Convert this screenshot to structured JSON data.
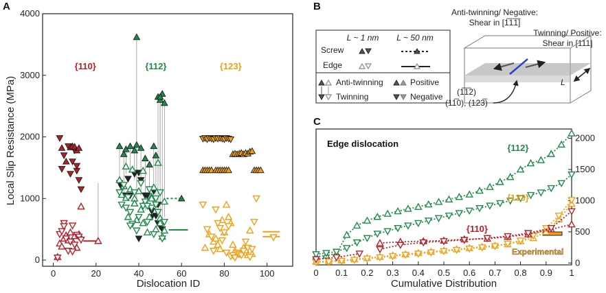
{
  "colors": {
    "red": "#b5202a",
    "green": "#1f8a4a",
    "orange": "#f0a017",
    "dark": "#1f2a25",
    "gray": "#888888"
  },
  "panel_labels": {
    "a": "A",
    "b": "B",
    "c": "C"
  },
  "chart_data": [
    {
      "panel": "A",
      "type": "scatter",
      "xlabel": "Dislocation ID",
      "ylabel": "Local Slip Resistance (MPa)",
      "xlim": [
        -5,
        112
      ],
      "ylim": [
        -100,
        4000
      ],
      "xticks": [
        "0",
        "20",
        "40",
        "60",
        "80",
        "100"
      ],
      "yticks": [
        "0",
        "1000",
        "2000",
        "3000",
        "4000"
      ],
      "group_labels": [
        {
          "text": "{110}",
          "x": 15,
          "y": 3100,
          "color": "red"
        },
        {
          "text": "{112}",
          "x": 48,
          "y": 3100,
          "color": "green"
        },
        {
          "text": "{123}",
          "x": 83,
          "y": 3100,
          "color": "orange"
        }
      ],
      "series": [
        {
          "name": "{110} anti-twinning",
          "color": "red",
          "marker": "down",
          "filled": true,
          "x": [
            3,
            5,
            7,
            9,
            10,
            11,
            12,
            13,
            4,
            8,
            11
          ],
          "y": [
            1980,
            1700,
            1850,
            1600,
            1780,
            1450,
            1300,
            1150,
            1480,
            1400,
            1530
          ]
        },
        {
          "name": "{110} twinning",
          "color": "red",
          "marker": "up",
          "filled": true,
          "x": [
            4,
            6,
            8,
            9,
            10,
            11,
            12
          ],
          "y": [
            1820,
            1600,
            1830,
            1850,
            1840,
            1780,
            1820
          ]
        },
        {
          "name": "{110} open up",
          "color": "red",
          "marker": "up",
          "filled": false,
          "x": [
            2,
            3,
            4,
            5,
            6,
            7,
            8,
            9,
            10,
            11,
            12,
            13
          ],
          "y": [
            50,
            270,
            220,
            350,
            400,
            320,
            450,
            310,
            390,
            200,
            420,
            870
          ]
        },
        {
          "name": "{110} open down",
          "color": "red",
          "marker": "down",
          "filled": false,
          "x": [
            2,
            3,
            4,
            5,
            6,
            7,
            8,
            9,
            10,
            11,
            12,
            13,
            5,
            9
          ],
          "y": [
            40,
            420,
            470,
            600,
            350,
            150,
            300,
            560,
            250,
            410,
            380,
            330,
            550,
            140
          ]
        },
        {
          "name": "{110} L~50 edge",
          "color": "red",
          "type": "hline",
          "x": [
            14,
            20
          ],
          "y": [
            310,
            310
          ]
        },
        {
          "name": "{110} L~50 marker",
          "color": "red",
          "marker": "up",
          "filled": false,
          "x": [
            21
          ],
          "y": [
            310
          ]
        },
        {
          "name": "{112} filled up",
          "color": "green",
          "marker": "up",
          "filled": true,
          "x": [
            31,
            33,
            34,
            36,
            38,
            39,
            41,
            43,
            45,
            47,
            48,
            49,
            50,
            51,
            52,
            39,
            50
          ],
          "y": [
            1850,
            1720,
            1800,
            1850,
            1780,
            1870,
            1820,
            1650,
            1550,
            1850,
            1700,
            2650,
            2600,
            2700,
            2550,
            3620,
            2650
          ]
        },
        {
          "name": "{112} filled down",
          "color": "dark",
          "marker": "down",
          "filled": true,
          "x": [
            31,
            32,
            33,
            35,
            36,
            38,
            40,
            41,
            43,
            44,
            46,
            47,
            48,
            49,
            50,
            51,
            40,
            46,
            49
          ],
          "y": [
            1250,
            1180,
            1050,
            1320,
            1050,
            1400,
            1420,
            1300,
            1050,
            1050,
            800,
            1120,
            720,
            600,
            550,
            500,
            350,
            700,
            900
          ]
        },
        {
          "name": "{112} open up",
          "color": "green",
          "marker": "up",
          "filled": false,
          "x": [
            31,
            32,
            33,
            34,
            35,
            36,
            37,
            38,
            39,
            40,
            41,
            42,
            43,
            44,
            45,
            46,
            47,
            48,
            49,
            50,
            51,
            52,
            34,
            38,
            42,
            46,
            50,
            52
          ],
          "y": [
            1300,
            1060,
            1200,
            1520,
            700,
            1150,
            1470,
            1000,
            650,
            1120,
            820,
            1450,
            950,
            450,
            700,
            1030,
            1180,
            500,
            1580,
            680,
            380,
            950,
            1010,
            920,
            600,
            1000,
            600,
            480
          ]
        },
        {
          "name": "{112} open down",
          "color": "green",
          "marker": "down",
          "filled": false,
          "x": [
            31,
            32,
            33,
            34,
            35,
            36,
            37,
            38,
            39,
            40,
            41,
            42,
            43,
            44,
            45,
            46,
            47,
            48,
            49,
            50,
            51,
            52,
            36,
            44,
            48
          ],
          "y": [
            1100,
            900,
            1220,
            850,
            1020,
            780,
            590,
            1100,
            480,
            700,
            1250,
            880,
            950,
            620,
            1150,
            850,
            420,
            900,
            780,
            1100,
            350,
            620,
            560,
            880,
            1000
          ]
        },
        {
          "name": "{112} L~50 edge",
          "color": "green",
          "type": "hline",
          "x": [
            54,
            63
          ],
          "y": [
            490,
            490
          ]
        },
        {
          "name": "{112} L~50 screw",
          "color": "green",
          "type": "dotted",
          "x": [
            53,
            60
          ],
          "y": [
            1000,
            1000
          ]
        },
        {
          "name": "{112} L~50 marker",
          "color": "green",
          "marker": "up",
          "filled": true,
          "x": [
            60
          ],
          "y": [
            1000
          ]
        },
        {
          "name": "{123} filled down",
          "color": "orange",
          "marker": "down",
          "filled": true,
          "x": [
            70,
            71,
            72,
            73,
            74,
            75,
            76,
            77,
            78,
            79,
            80,
            81,
            82,
            83
          ],
          "y": [
            1970,
            1980,
            1960,
            1980,
            1970,
            1960,
            1980,
            1970,
            1980,
            1970,
            1960,
            1980,
            1970,
            1960
          ]
        },
        {
          "name": "{123} filled up",
          "color": "orange",
          "marker": "up",
          "filled": true,
          "x": [
            70,
            71,
            72,
            73,
            74,
            76,
            77,
            78,
            79,
            80,
            81,
            82,
            84,
            85,
            86,
            87,
            88,
            89,
            90,
            91,
            92,
            93,
            94,
            95,
            96,
            97
          ],
          "y": [
            1460,
            1460,
            1460,
            1460,
            1460,
            1460,
            1460,
            1460,
            1460,
            1460,
            1460,
            1460,
            1720,
            1730,
            1720,
            1730,
            1740,
            1720,
            1740,
            1730,
            1760,
            1770,
            1460,
            1460,
            1460,
            1460
          ]
        },
        {
          "name": "{123} open up",
          "color": "orange",
          "marker": "up",
          "filled": false,
          "x": [
            71,
            73,
            75,
            76,
            77,
            78,
            79,
            80,
            81,
            82,
            83,
            84,
            85,
            86,
            87,
            88,
            89,
            90,
            91,
            92,
            93
          ],
          "y": [
            200,
            420,
            300,
            350,
            250,
            180,
            650,
            450,
            900,
            700,
            600,
            250,
            150,
            100,
            90,
            120,
            200,
            160,
            80,
            480,
            100
          ]
        },
        {
          "name": "{123} open down",
          "color": "orange",
          "marker": "down",
          "filled": false,
          "x": [
            70,
            72,
            74,
            75,
            76,
            77,
            78,
            79,
            80,
            81,
            82,
            83,
            84,
            85,
            86,
            87,
            88,
            89,
            90,
            91,
            92,
            93,
            94,
            95
          ],
          "y": [
            900,
            500,
            380,
            150,
            820,
            600,
            520,
            320,
            450,
            120,
            550,
            60,
            80,
            40,
            120,
            100,
            80,
            150,
            300,
            200,
            50,
            180,
            620,
            1000
          ]
        },
        {
          "name": "{123} L~50 edge",
          "color": "orange",
          "type": "hline",
          "x": [
            98,
            106
          ],
          "y": [
            460,
            460
          ]
        },
        {
          "name": "{123} L~50 edge 2",
          "color": "orange",
          "type": "hline",
          "x": [
            98,
            106
          ],
          "y": [
            380,
            380
          ]
        },
        {
          "name": "{123} L~50 marker",
          "color": "orange",
          "marker": "down",
          "filled": false,
          "x": [
            103
          ],
          "y": [
            370
          ]
        }
      ]
    },
    {
      "panel": "C",
      "type": "line",
      "xlabel": "Cumulative Distribution",
      "ylabel": "",
      "xlim": [
        0,
        1
      ],
      "ylim": [
        -30,
        2150
      ],
      "xticks": [
        "0",
        "0.1",
        "0.2",
        "0.3",
        "0.4",
        "0.5",
        "0.6",
        "0.7",
        "0.8",
        "0.9",
        "1"
      ],
      "yticks": [
        "0",
        "500",
        "1000",
        "1500",
        "2000"
      ],
      "annotation": "Edge dislocation",
      "experimental_label": "Experimental",
      "experimental_value": 370,
      "group_labels": [
        {
          "text": "{112}",
          "x": 0.79,
          "y": 1800,
          "color": "green"
        },
        {
          "text": "{123}",
          "x": 0.79,
          "y": 1000,
          "color": "orange"
        },
        {
          "text": "{110}",
          "x": 0.63,
          "y": 500,
          "color": "red"
        }
      ],
      "series": [
        {
          "name": "{112} anti-twinning",
          "color": "green",
          "marker": "up",
          "x": [
            0,
            0.04,
            0.08,
            0.12,
            0.16,
            0.2,
            0.24,
            0.28,
            0.32,
            0.36,
            0.4,
            0.44,
            0.48,
            0.52,
            0.56,
            0.6,
            0.64,
            0.68,
            0.72,
            0.76,
            0.8,
            0.84,
            0.88,
            0.92,
            0.96,
            1.0
          ],
          "y": [
            100,
            120,
            150,
            450,
            600,
            680,
            740,
            790,
            830,
            870,
            900,
            940,
            980,
            1020,
            1060,
            1100,
            1160,
            1220,
            1300,
            1380,
            1500,
            1600,
            1650,
            1750,
            1900,
            2080
          ]
        },
        {
          "name": "{112} twinning",
          "color": "green",
          "marker": "down",
          "x": [
            0,
            0.04,
            0.08,
            0.12,
            0.16,
            0.2,
            0.24,
            0.28,
            0.32,
            0.36,
            0.4,
            0.44,
            0.48,
            0.52,
            0.56,
            0.6,
            0.64,
            0.68,
            0.72,
            0.76,
            0.8,
            0.84,
            0.88,
            0.92,
            0.96,
            1.0
          ],
          "y": [
            140,
            160,
            180,
            240,
            330,
            400,
            470,
            510,
            560,
            600,
            640,
            680,
            720,
            760,
            800,
            840,
            880,
            920,
            960,
            1000,
            1040,
            1090,
            1130,
            1200,
            1280,
            1420
          ]
        },
        {
          "name": "{123} anti-twinning",
          "color": "orange",
          "marker": "up",
          "x": [
            0,
            0.05,
            0.1,
            0.15,
            0.2,
            0.25,
            0.3,
            0.35,
            0.4,
            0.45,
            0.5,
            0.55,
            0.6,
            0.65,
            0.7,
            0.75,
            0.8,
            0.85,
            0.9,
            0.95,
            1.0
          ],
          "y": [
            20,
            30,
            40,
            60,
            80,
            100,
            120,
            140,
            160,
            180,
            200,
            220,
            240,
            260,
            280,
            300,
            350,
            400,
            500,
            700,
            950
          ]
        },
        {
          "name": "{123} twinning",
          "color": "orange",
          "marker": "down",
          "x": [
            0,
            0.05,
            0.1,
            0.15,
            0.2,
            0.25,
            0.3,
            0.35,
            0.4,
            0.45,
            0.5,
            0.55,
            0.6,
            0.65,
            0.7,
            0.75,
            0.8,
            0.85,
            0.9,
            0.95,
            1.0
          ],
          "y": [
            10,
            20,
            35,
            50,
            70,
            90,
            110,
            130,
            150,
            170,
            190,
            210,
            230,
            250,
            270,
            310,
            360,
            440,
            560,
            760,
            1010
          ]
        },
        {
          "name": "{110} anti-twinning",
          "color": "red",
          "marker": "up",
          "x": [
            0.25,
            0.33,
            0.42,
            0.5,
            0.58,
            0.67,
            0.75,
            0.83,
            0.92,
            1.0
          ],
          "y": [
            320,
            340,
            350,
            360,
            380,
            390,
            420,
            460,
            540,
            620
          ]
        },
        {
          "name": "{110} twinning",
          "color": "red",
          "marker": "down",
          "x": [
            0.25,
            0.33,
            0.42,
            0.5,
            0.58,
            0.67,
            0.75,
            0.83,
            0.92,
            1.0
          ],
          "y": [
            220,
            290,
            330,
            350,
            370,
            400,
            430,
            480,
            560,
            830
          ]
        },
        {
          "name": "{110} low",
          "color": "red",
          "marker": "down",
          "x": [
            0,
            0.08,
            0.17
          ],
          "y": [
            60,
            90,
            150
          ]
        }
      ]
    }
  ],
  "panel_b": {
    "legend_header_short": "L ~ 1 nm",
    "legend_header_long": "L ~ 50 nm",
    "legend_screw": "Screw",
    "legend_edge": "Edge",
    "legend_anti_twinning": "Anti-twinning",
    "legend_twinning": "Twinning",
    "legend_positive": "Positive",
    "legend_negative": "Negative",
    "diagram_anti_label": "Anti-twinning/ Negative:",
    "diagram_anti_shear": "Shear in [1̅1̅1̅]",
    "diagram_twin_label": "Twinning/ Positive:",
    "diagram_twin_shear": "Shear in [111]",
    "diagram_L": "L",
    "diagram_plane_112": "(1̅1̅2)",
    "diagram_plane_110_123": "(11̅0), (123̅)"
  }
}
